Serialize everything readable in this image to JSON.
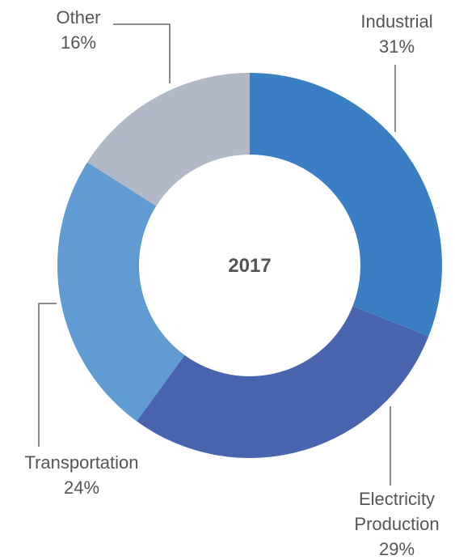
{
  "chart_data": {
    "type": "pie",
    "title": "2017",
    "categories": [
      "Industrial",
      "Electricity Production",
      "Transportation",
      "Other"
    ],
    "values": [
      31,
      29,
      24,
      16
    ],
    "value_labels": [
      "31%",
      "29%",
      "24%",
      "16%"
    ],
    "colors": [
      "#3a7ec4",
      "#4964ae",
      "#609cd1",
      "#b1b9c8"
    ],
    "donut": true
  }
}
